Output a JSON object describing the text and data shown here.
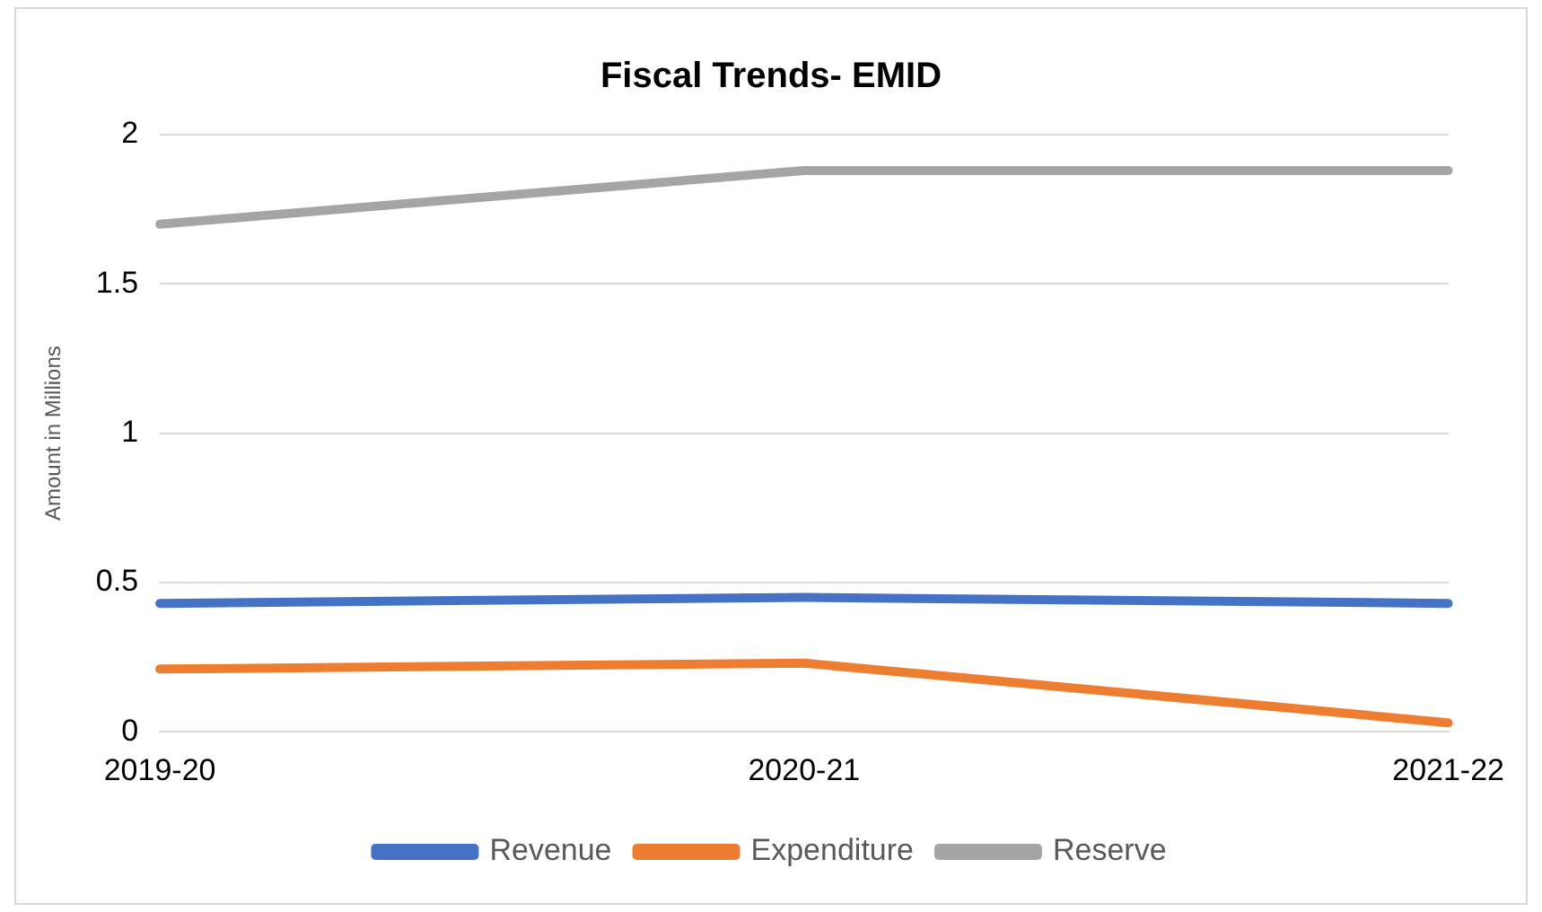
{
  "chart_data": {
    "type": "line",
    "title": "Fiscal Trends- EMID",
    "ylabel": "Amount in Millions",
    "categories": [
      "2019-20",
      "2020-21",
      "2021-22"
    ],
    "series": [
      {
        "name": "Revenue",
        "color": "#4472c4",
        "values": [
          0.43,
          0.45,
          0.43
        ]
      },
      {
        "name": "Expenditure",
        "color": "#ed7d31",
        "values": [
          0.21,
          0.23,
          0.03
        ]
      },
      {
        "name": "Reserve",
        "color": "#a5a5a5",
        "values": [
          1.7,
          1.88,
          1.88
        ]
      }
    ],
    "ylim": [
      0,
      2
    ],
    "yticks": [
      0,
      0.5,
      1,
      1.5,
      2
    ],
    "grid": "y",
    "legend": "bottom",
    "marker": "none",
    "line_style": "solid"
  }
}
